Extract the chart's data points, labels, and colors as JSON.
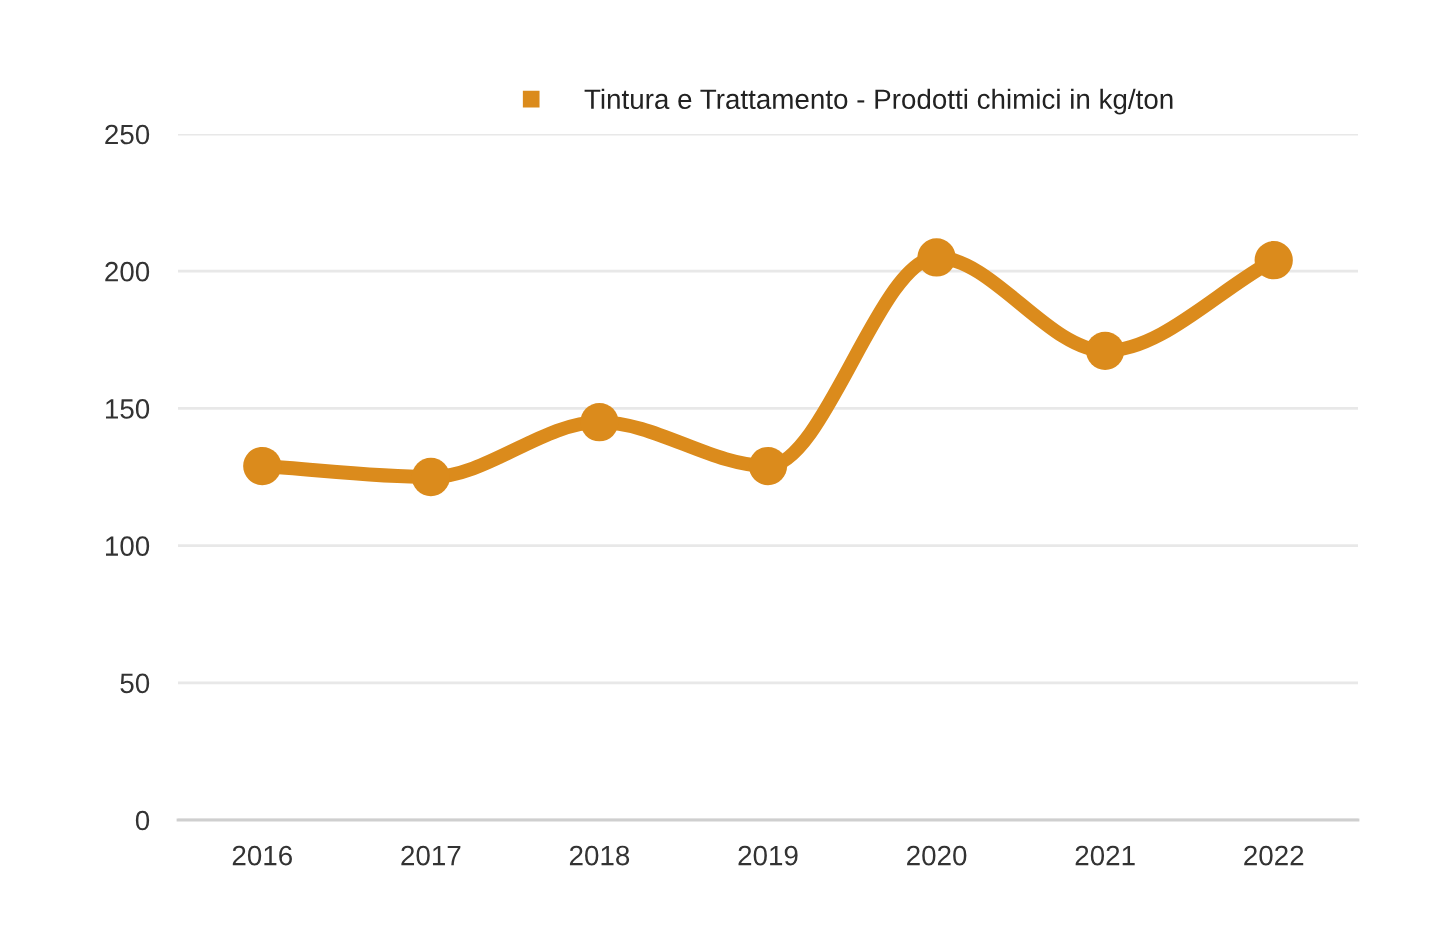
{
  "chart_data": {
    "type": "line",
    "categories": [
      "2016",
      "2017",
      "2018",
      "2019",
      "2020",
      "2021",
      "2022"
    ],
    "series": [
      {
        "name": "Tintura e Trattamento - Prodotti chimici in kg/ton",
        "color": "#db8b1c",
        "values": [
          129,
          125,
          145,
          129,
          205,
          171,
          204
        ]
      }
    ],
    "ylim": [
      0,
      250
    ],
    "yticks": [
      0,
      50,
      100,
      150,
      200,
      250
    ],
    "grid": "y",
    "legend": "top",
    "marker": "circle",
    "line_style": "solid"
  }
}
